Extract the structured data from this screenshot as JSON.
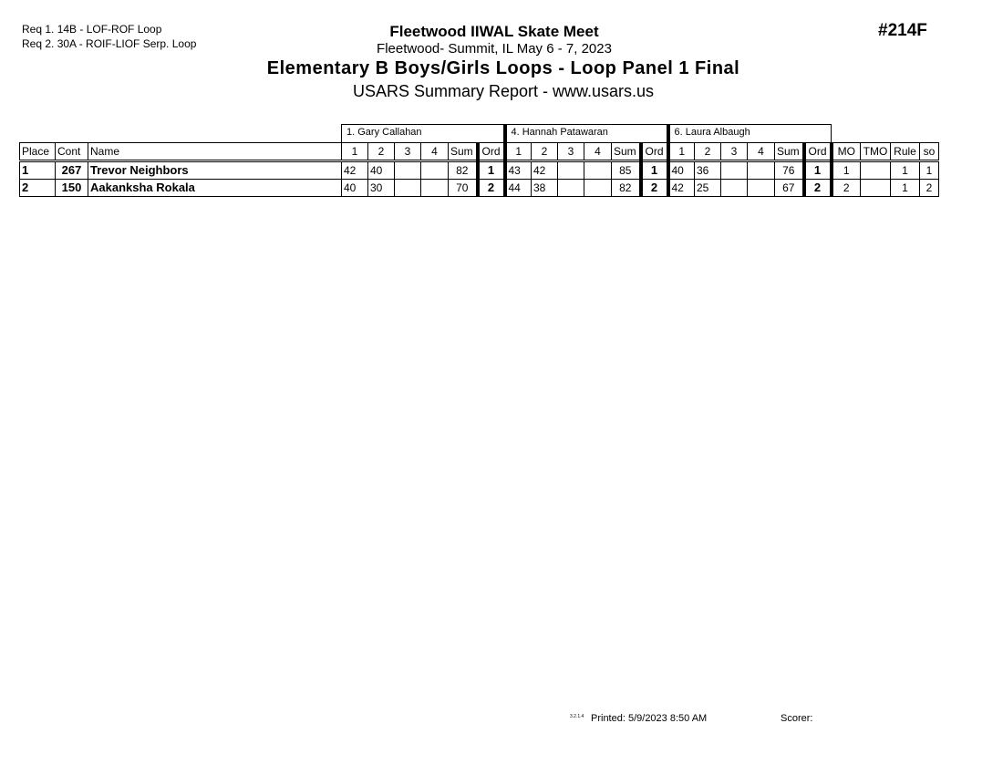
{
  "requirements": [
    "Req  1.  14B - LOF-ROF Loop",
    "Req  2.  30A - ROIF-LIOF Serp. Loop"
  ],
  "meet_title": "Fleetwood IIWAL Skate Meet",
  "location_dates": "Fleetwood- Summit, IL  May 6 - 7, 2023",
  "event_title": "Elementary B Boys/Girls Loops - Loop Panel 1 Final",
  "report_title": "USARS Summary Report - www.usars.us",
  "event_number": "#214F",
  "judges": [
    "1.  Gary Callahan",
    "4.  Hannah Patawaran",
    "6.  Laura Albaugh"
  ],
  "headers": {
    "place": "Place",
    "cont": "Cont",
    "name": "Name",
    "marks": [
      "1",
      "2",
      "3",
      "4"
    ],
    "sum": "Sum",
    "ord": "Ord",
    "mo": "MO",
    "tmo": "TMO",
    "rule": "Rule",
    "so": "so"
  },
  "rows": [
    {
      "place": "1",
      "cont": "267",
      "name": "Trevor Neighbors",
      "judges": [
        {
          "m": [
            "42",
            "40",
            "",
            ""
          ],
          "sum": "82",
          "ord": "1"
        },
        {
          "m": [
            "43",
            "42",
            "",
            ""
          ],
          "sum": "85",
          "ord": "1"
        },
        {
          "m": [
            "40",
            "36",
            "",
            ""
          ],
          "sum": "76",
          "ord": "1"
        }
      ],
      "mo": "1",
      "tmo": "",
      "rule": "1",
      "so": "1"
    },
    {
      "place": "2",
      "cont": "150",
      "name": "Aakanksha Rokala",
      "judges": [
        {
          "m": [
            "40",
            "30",
            "",
            ""
          ],
          "sum": "70",
          "ord": "2"
        },
        {
          "m": [
            "44",
            "38",
            "",
            ""
          ],
          "sum": "82",
          "ord": "2"
        },
        {
          "m": [
            "42",
            "25",
            "",
            ""
          ],
          "sum": "67",
          "ord": "2"
        }
      ],
      "mo": "2",
      "tmo": "",
      "rule": "1",
      "so": "2"
    }
  ],
  "footer": {
    "code": "3.2.1.4",
    "printed": "Printed:  5/9/2023  8:50 AM",
    "scorer": "Scorer:"
  }
}
